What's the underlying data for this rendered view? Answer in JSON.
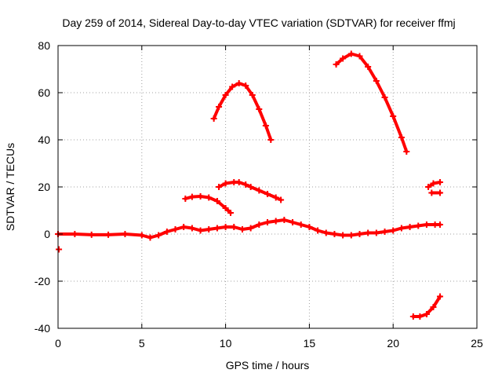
{
  "chart_data": {
    "type": "scatter",
    "title": "Day 259 of 2014, Sidereal Day-to-day VTEC variation (SDTVAR) for receiver ffmj",
    "xlabel": "GPS time / hours",
    "ylabel": "SDTVAR / TECUs",
    "xlim": [
      0,
      25
    ],
    "ylim": [
      -40,
      80
    ],
    "x_ticks": [
      0,
      5,
      10,
      15,
      20,
      25
    ],
    "y_ticks": [
      -40,
      -20,
      0,
      20,
      40,
      60,
      80
    ],
    "x_tick_labels": [
      "0",
      "5",
      "10",
      "15",
      "20",
      "25"
    ],
    "y_tick_labels": [
      "-40",
      "-20",
      "0",
      "20",
      "40",
      "60",
      "80"
    ],
    "grid": true,
    "color": "#ff0000",
    "series": [
      {
        "name": "baseline",
        "points": [
          [
            0,
            0
          ],
          [
            1,
            0
          ],
          [
            2,
            -0.3
          ],
          [
            3,
            -0.3
          ],
          [
            4,
            0
          ],
          [
            5,
            -0.5
          ],
          [
            5.5,
            -1.5
          ],
          [
            6,
            -0.5
          ],
          [
            6.5,
            1
          ],
          [
            7,
            2
          ],
          [
            7.5,
            3
          ],
          [
            8,
            2.5
          ],
          [
            8.5,
            1.5
          ],
          [
            9,
            2
          ],
          [
            9.5,
            2.5
          ],
          [
            10,
            3
          ],
          [
            10.5,
            3
          ],
          [
            11,
            2
          ],
          [
            11.5,
            2.5
          ],
          [
            12,
            4
          ],
          [
            12.5,
            5
          ],
          [
            13,
            5.5
          ],
          [
            13.5,
            6
          ],
          [
            14,
            5
          ],
          [
            14.5,
            4
          ],
          [
            15,
            3
          ],
          [
            15.5,
            1.5
          ],
          [
            16,
            0.5
          ],
          [
            16.5,
            0
          ],
          [
            17,
            -0.5
          ],
          [
            17.5,
            -0.5
          ],
          [
            18,
            0
          ],
          [
            18.5,
            0.5
          ],
          [
            19,
            0.5
          ],
          [
            19.5,
            1
          ],
          [
            20,
            1.5
          ],
          [
            20.5,
            2.5
          ],
          [
            21,
            3
          ],
          [
            21.5,
            3.5
          ],
          [
            22,
            4
          ],
          [
            22.5,
            4
          ],
          [
            22.8,
            4
          ]
        ]
      },
      {
        "name": "arc-a",
        "points": [
          [
            7.6,
            15
          ],
          [
            8,
            15.8
          ],
          [
            8.5,
            16
          ],
          [
            9,
            15.5
          ],
          [
            9.5,
            14
          ],
          [
            10,
            11
          ],
          [
            10.3,
            9
          ]
        ]
      },
      {
        "name": "arc-b",
        "points": [
          [
            9.6,
            20
          ],
          [
            10,
            21.5
          ],
          [
            10.5,
            22
          ],
          [
            10.8,
            22
          ],
          [
            11.2,
            21
          ],
          [
            11.5,
            20
          ],
          [
            12,
            18.5
          ],
          [
            12.5,
            17
          ],
          [
            13,
            15.5
          ],
          [
            13.3,
            14.5
          ]
        ]
      },
      {
        "name": "arc-c",
        "points": [
          [
            9.3,
            49
          ],
          [
            9.6,
            54
          ],
          [
            10,
            59
          ],
          [
            10.4,
            62.5
          ],
          [
            10.8,
            64
          ],
          [
            11.2,
            63
          ],
          [
            11.6,
            59
          ],
          [
            12,
            53
          ],
          [
            12.4,
            46
          ],
          [
            12.7,
            40
          ]
        ]
      },
      {
        "name": "arc-d",
        "points": [
          [
            16.6,
            72
          ],
          [
            17,
            74.5
          ],
          [
            17.5,
            76.5
          ],
          [
            18,
            75.5
          ],
          [
            18.5,
            71
          ],
          [
            19,
            65
          ],
          [
            19.5,
            58
          ],
          [
            20,
            50
          ],
          [
            20.5,
            41
          ],
          [
            20.8,
            35
          ]
        ]
      },
      {
        "name": "arc-e",
        "points": [
          [
            22.1,
            20
          ],
          [
            22.4,
            21.5
          ],
          [
            22.8,
            22
          ]
        ]
      },
      {
        "name": "arc-f",
        "points": [
          [
            22.3,
            17.5
          ],
          [
            22.8,
            17.5
          ]
        ]
      },
      {
        "name": "arc-g",
        "points": [
          [
            21.2,
            -35
          ],
          [
            21.6,
            -35
          ],
          [
            22,
            -34
          ],
          [
            22.4,
            -31
          ],
          [
            22.8,
            -26.5
          ]
        ]
      },
      {
        "name": "outlier",
        "points": [
          [
            0.05,
            -6.5
          ]
        ]
      }
    ]
  }
}
